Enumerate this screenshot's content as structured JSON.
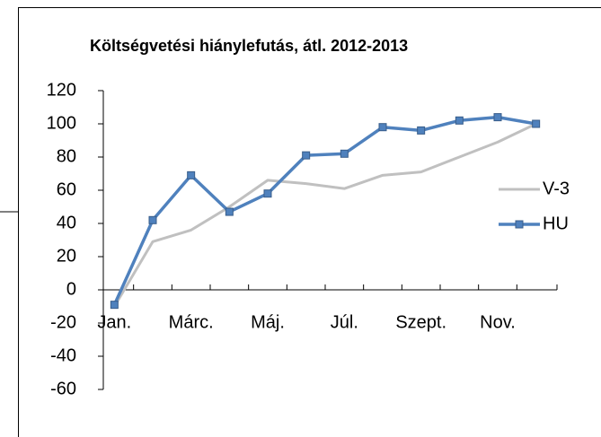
{
  "chart_data": {
    "type": "line",
    "title": "Költségvetési hiánylefutás, átl. 2012-2013",
    "categories": [
      "Jan.",
      null,
      "Márc.",
      null,
      "Máj.",
      null,
      "Júl.",
      null,
      "Szept.",
      null,
      "Nov.",
      null
    ],
    "series": [
      {
        "name": "V-3",
        "color": "#c0c0c0",
        "values": [
          -10,
          29,
          36,
          50,
          66,
          64,
          61,
          69,
          71,
          80,
          89,
          100
        ]
      },
      {
        "name": "HU",
        "color": "#4f81bd",
        "values": [
          -9,
          42,
          69,
          47,
          58,
          81,
          82,
          98,
          96,
          102,
          104,
          100
        ]
      }
    ],
    "ylim": [
      -60,
      120
    ],
    "yticks": [
      -60,
      -40,
      -20,
      0,
      20,
      40,
      60,
      80,
      100,
      120
    ],
    "legend": "right"
  }
}
